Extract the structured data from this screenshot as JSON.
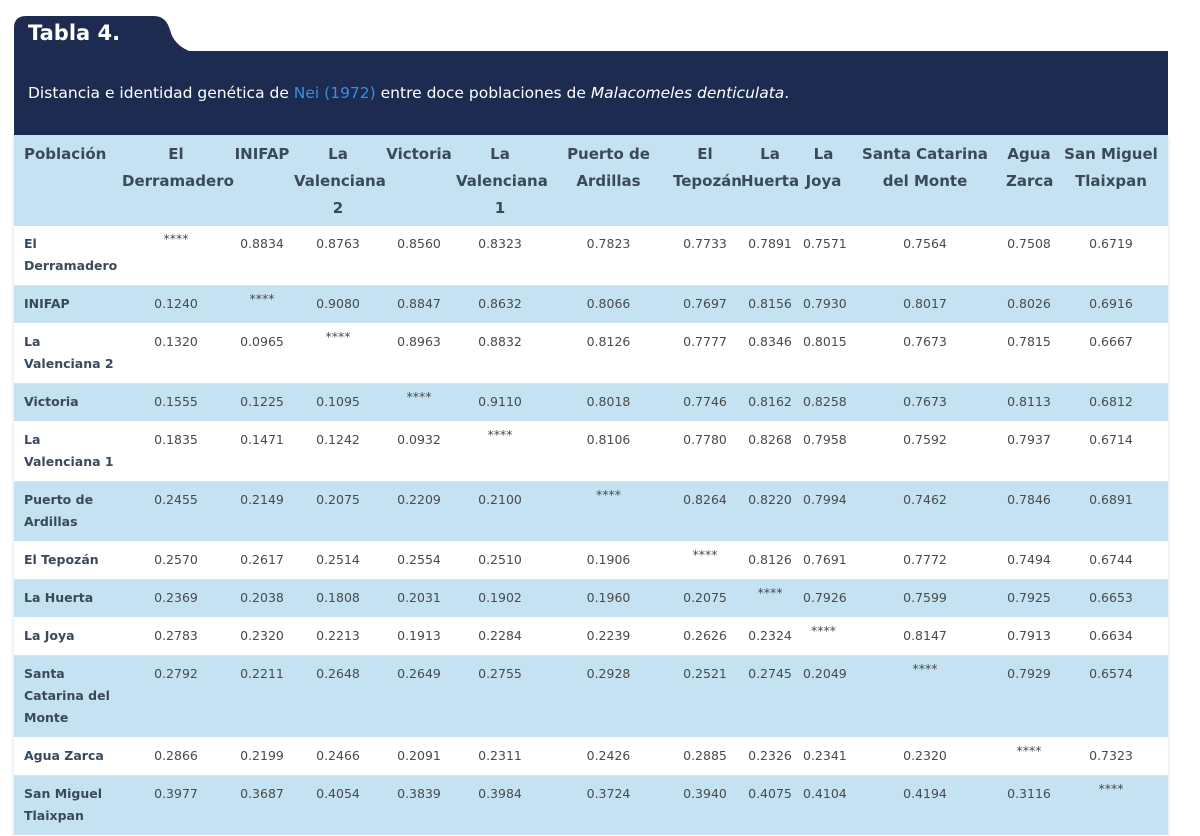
{
  "table_label": "Tabla 4.",
  "caption": {
    "prefix": "Distancia e identidad genética de ",
    "reference": "Nei (1972)",
    "middle": " entre doce poblaciones de ",
    "species": "Malacomeles denticulata",
    "suffix": "."
  },
  "colors": {
    "header_bg": "#1c2b4f",
    "row_alt": "#c4e2f2",
    "link": "#3b8fe0"
  },
  "headers": [
    "Población",
    "El Derramadero",
    "INIFAP",
    "La Valenciana 2",
    "Victoria",
    "La Valenciana 1",
    "Puerto de Ardillas",
    "El Tepozán",
    "La Huerta",
    "La Joya",
    "Santa Catarina del Monte",
    "Agua Zarca",
    "San Miguel Tlaixpan"
  ],
  "rows": [
    {
      "name": "El Derramadero",
      "values": [
        "****",
        "0.8834",
        "0.8763",
        "0.8560",
        "0.8323",
        "0.7823",
        "0.7733",
        "0.7891",
        "0.7571",
        "0.7564",
        "0.7508",
        "0.6719"
      ]
    },
    {
      "name": "INIFAP",
      "values": [
        "0.1240",
        "****",
        "0.9080",
        "0.8847",
        "0.8632",
        "0.8066",
        "0.7697",
        "0.8156",
        "0.7930",
        "0.8017",
        "0.8026",
        "0.6916"
      ]
    },
    {
      "name": "La Valenciana 2",
      "values": [
        "0.1320",
        "0.0965",
        "****",
        "0.8963",
        "0.8832",
        "0.8126",
        "0.7777",
        "0.8346",
        "0.8015",
        "0.7673",
        "0.7815",
        "0.6667"
      ]
    },
    {
      "name": "Victoria",
      "values": [
        "0.1555",
        "0.1225",
        "0.1095",
        "****",
        "0.9110",
        "0.8018",
        "0.7746",
        "0.8162",
        "0.8258",
        "0.7673",
        "0.8113",
        "0.6812"
      ]
    },
    {
      "name": "La Valenciana 1",
      "values": [
        "0.1835",
        "0.1471",
        "0.1242",
        "0.0932",
        "****",
        "0.8106",
        "0.7780",
        "0.8268",
        "0.7958",
        "0.7592",
        "0.7937",
        "0.6714"
      ]
    },
    {
      "name": "Puerto de Ardillas",
      "values": [
        "0.2455",
        "0.2149",
        "0.2075",
        "0.2209",
        "0.2100",
        "****",
        "0.8264",
        "0.8220",
        "0.7994",
        "0.7462",
        "0.7846",
        "0.6891"
      ]
    },
    {
      "name": "El Tepozán",
      "values": [
        "0.2570",
        "0.2617",
        "0.2514",
        "0.2554",
        "0.2510",
        "0.1906",
        "****",
        "0.8126",
        "0.7691",
        "0.7772",
        "0.7494",
        "0.6744"
      ]
    },
    {
      "name": "La Huerta",
      "values": [
        "0.2369",
        "0.2038",
        "0.1808",
        "0.2031",
        "0.1902",
        "0.1960",
        "0.2075",
        "****",
        "0.7926",
        "0.7599",
        "0.7925",
        "0.6653"
      ]
    },
    {
      "name": "La Joya",
      "values": [
        "0.2783",
        "0.2320",
        "0.2213",
        "0.1913",
        "0.2284",
        "0.2239",
        "0.2626",
        "0.2324",
        "****",
        "0.8147",
        "0.7913",
        "0.6634"
      ]
    },
    {
      "name": "Santa Catarina del Monte",
      "values": [
        "0.2792",
        "0.2211",
        "0.2648",
        "0.2649",
        "0.2755",
        "0.2928",
        "0.2521",
        "0.2745",
        "0.2049",
        "****",
        "0.7929",
        "0.6574"
      ]
    },
    {
      "name": "Agua Zarca",
      "values": [
        "0.2866",
        "0.2199",
        "0.2466",
        "0.2091",
        "0.2311",
        "0.2426",
        "0.2885",
        "0.2326",
        "0.2341",
        "0.2320",
        "****",
        "0.7323"
      ]
    },
    {
      "name": "San Miguel Tlaixpan",
      "values": [
        "0.3977",
        "0.3687",
        "0.4054",
        "0.3839",
        "0.3984",
        "0.3724",
        "0.3940",
        "0.4075",
        "0.4104",
        "0.4194",
        "0.3116",
        "****"
      ]
    }
  ]
}
